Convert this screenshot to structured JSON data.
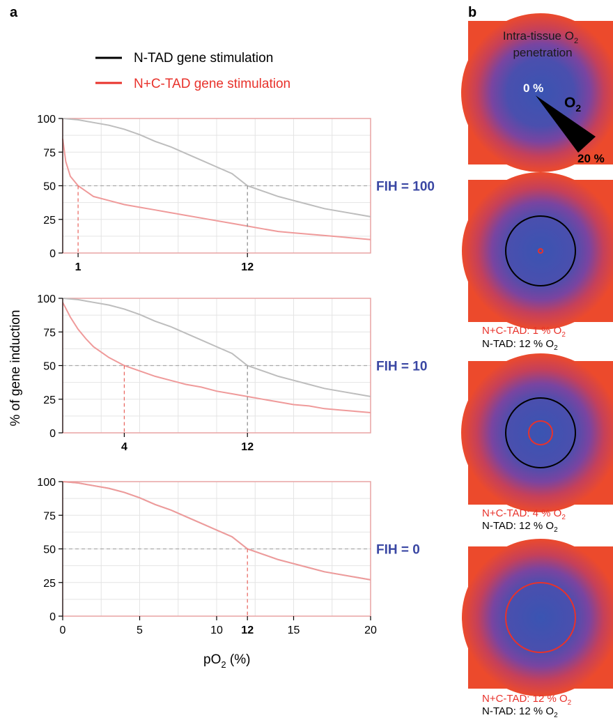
{
  "panel_a_label": "a",
  "panel_b_label": "b",
  "legend": [
    {
      "name": "N-TAD gene stimulation",
      "color": "#000000"
    },
    {
      "name": "N+C-TAD gene stimulation",
      "color": "#e8322b"
    }
  ],
  "ylabel": "% of gene induction",
  "xlabel_main": "pO",
  "xlabel_sub": "2",
  "xlabel_suffix": " (%)",
  "colors": {
    "frame": "#e9a3a3",
    "grid": "#e4e4e4",
    "ntad_line": "#bdbdbd",
    "nctad_line": "#ef9a9a",
    "fih_label": "#3a47a3",
    "red_text": "#e8322b",
    "black_text": "#000000"
  },
  "chart_data": [
    {
      "type": "line",
      "annotation": "FIH = 100",
      "xlim": [
        0,
        20
      ],
      "ylim": [
        0,
        100
      ],
      "yticks": [
        0,
        25,
        50,
        75,
        100
      ],
      "xtick_labels": [
        "1",
        "12"
      ],
      "xtick_values": [
        1,
        12
      ],
      "reference_y": 50,
      "markers": [
        {
          "x": 1,
          "series": "N+C-TAD gene stimulation"
        },
        {
          "x": 12,
          "series": "N-TAD gene stimulation"
        }
      ],
      "series": [
        {
          "name": "N-TAD gene stimulation",
          "x": [
            0,
            1,
            2,
            3,
            4,
            5,
            6,
            7,
            8,
            9,
            10,
            11,
            12,
            13,
            14,
            15,
            16,
            17,
            18,
            19,
            20
          ],
          "values": [
            100,
            99,
            97,
            95,
            92,
            88,
            83,
            79,
            74,
            69,
            64,
            59,
            50,
            46,
            42,
            39,
            36,
            33,
            31,
            29,
            27
          ]
        },
        {
          "name": "N+C-TAD gene stimulation",
          "x": [
            0,
            0.2,
            0.5,
            1,
            2,
            3,
            4,
            5,
            6,
            7,
            8,
            9,
            10,
            11,
            12,
            13,
            14,
            15,
            16,
            17,
            18,
            19,
            20
          ],
          "values": [
            85,
            68,
            57,
            50,
            42,
            39,
            36,
            34,
            32,
            30,
            28,
            26,
            24,
            22,
            20,
            18,
            16,
            15,
            14,
            13,
            12,
            11,
            10
          ]
        }
      ]
    },
    {
      "type": "line",
      "annotation": "FIH = 10",
      "xlim": [
        0,
        20
      ],
      "ylim": [
        0,
        100
      ],
      "yticks": [
        0,
        25,
        50,
        75,
        100
      ],
      "xtick_labels": [
        "4",
        "12"
      ],
      "xtick_values": [
        4,
        12
      ],
      "reference_y": 50,
      "markers": [
        {
          "x": 4,
          "series": "N+C-TAD gene stimulation"
        },
        {
          "x": 12,
          "series": "N-TAD gene stimulation"
        }
      ],
      "series": [
        {
          "name": "N-TAD gene stimulation",
          "x": [
            0,
            1,
            2,
            3,
            4,
            5,
            6,
            7,
            8,
            9,
            10,
            11,
            12,
            13,
            14,
            15,
            16,
            17,
            18,
            19,
            20
          ],
          "values": [
            100,
            99,
            97,
            95,
            92,
            88,
            83,
            79,
            74,
            69,
            64,
            59,
            50,
            46,
            42,
            39,
            36,
            33,
            31,
            29,
            27
          ]
        },
        {
          "name": "N+C-TAD gene stimulation",
          "x": [
            0,
            0.5,
            1,
            1.5,
            2,
            3,
            4,
            5,
            6,
            7,
            8,
            9,
            10,
            11,
            12,
            13,
            14,
            15,
            16,
            17,
            18,
            19,
            20
          ],
          "values": [
            97,
            86,
            77,
            70,
            64,
            56,
            50,
            46,
            42,
            39,
            36,
            34,
            31,
            29,
            27,
            25,
            23,
            21,
            20,
            18,
            17,
            16,
            15
          ]
        }
      ]
    },
    {
      "type": "line",
      "annotation": "FIH = 0",
      "xlim": [
        0,
        20
      ],
      "ylim": [
        0,
        100
      ],
      "yticks": [
        0,
        25,
        50,
        75,
        100
      ],
      "xtick_labels": [
        "0",
        "5",
        "10",
        "12",
        "15",
        "20"
      ],
      "xtick_values": [
        0,
        5,
        10,
        12,
        15,
        20
      ],
      "bold_xticks": [
        "12"
      ],
      "reference_y": 50,
      "markers": [
        {
          "x": 12,
          "series": "N+C-TAD gene stimulation"
        }
      ],
      "series": [
        {
          "name": "N-TAD gene stimulation",
          "x": [
            0,
            1,
            2,
            3,
            4,
            5,
            6,
            7,
            8,
            9,
            10,
            11,
            12,
            13,
            14,
            15,
            16,
            17,
            18,
            19,
            20
          ],
          "values": [
            100,
            99,
            97,
            95,
            92,
            88,
            83,
            79,
            74,
            69,
            64,
            59,
            50,
            46,
            42,
            39,
            36,
            33,
            31,
            29,
            27
          ]
        },
        {
          "name": "N+C-TAD gene stimulation",
          "x": [
            0,
            1,
            2,
            3,
            4,
            5,
            6,
            7,
            8,
            9,
            10,
            11,
            12,
            13,
            14,
            15,
            16,
            17,
            18,
            19,
            20
          ],
          "values": [
            100,
            99,
            97,
            95,
            92,
            88,
            83,
            79,
            74,
            69,
            64,
            59,
            50,
            46,
            42,
            39,
            36,
            33,
            31,
            29,
            27
          ]
        }
      ]
    }
  ],
  "tiles": [
    {
      "title_line1": "Intra-tissue O",
      "title_sub": "2",
      "title_line2": "penetration",
      "wedge_start": "0 %",
      "wedge_symbol": "O",
      "wedge_symbol_sub": "2",
      "wedge_end": "20 %"
    },
    {
      "ring_red_radius_fraction": 0.06,
      "ring_black_radius_fraction": 0.5,
      "caption_red": "N+C-TAD: 1 % O",
      "caption_red_sub": "2",
      "caption_black": "N-TAD: 12 % O",
      "caption_black_sub": "2"
    },
    {
      "ring_red_radius_fraction": 0.24,
      "ring_black_radius_fraction": 0.5,
      "caption_red": "N+C-TAD: 4 % O",
      "caption_red_sub": "2",
      "caption_black": "N-TAD: 12 % O",
      "caption_black_sub": "2"
    },
    {
      "ring_red_radius_fraction": 0.5,
      "ring_black_radius_fraction": null,
      "caption_red": "N+C-TAD: 12 % O",
      "caption_red_sub": "2",
      "caption_black": "N-TAD: 12 % O",
      "caption_black_sub": "2"
    }
  ]
}
